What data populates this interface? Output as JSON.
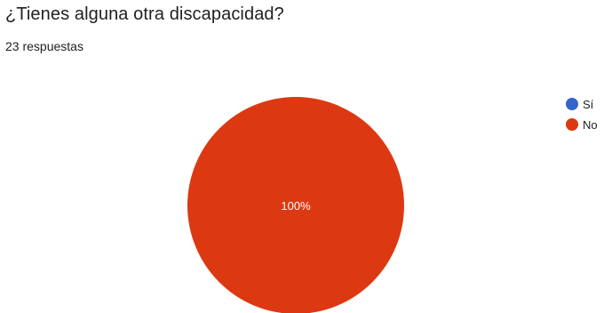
{
  "question": {
    "title": "¿Tienes alguna otra discapacidad?",
    "responses": "23 respuestas"
  },
  "chart_data": {
    "type": "pie",
    "categories": [
      "Sí",
      "No"
    ],
    "values": [
      0,
      100
    ],
    "colors": [
      "#3366cc",
      "#dc3912"
    ],
    "slice_labels": [
      "",
      "100%"
    ],
    "legend_position": "right"
  }
}
